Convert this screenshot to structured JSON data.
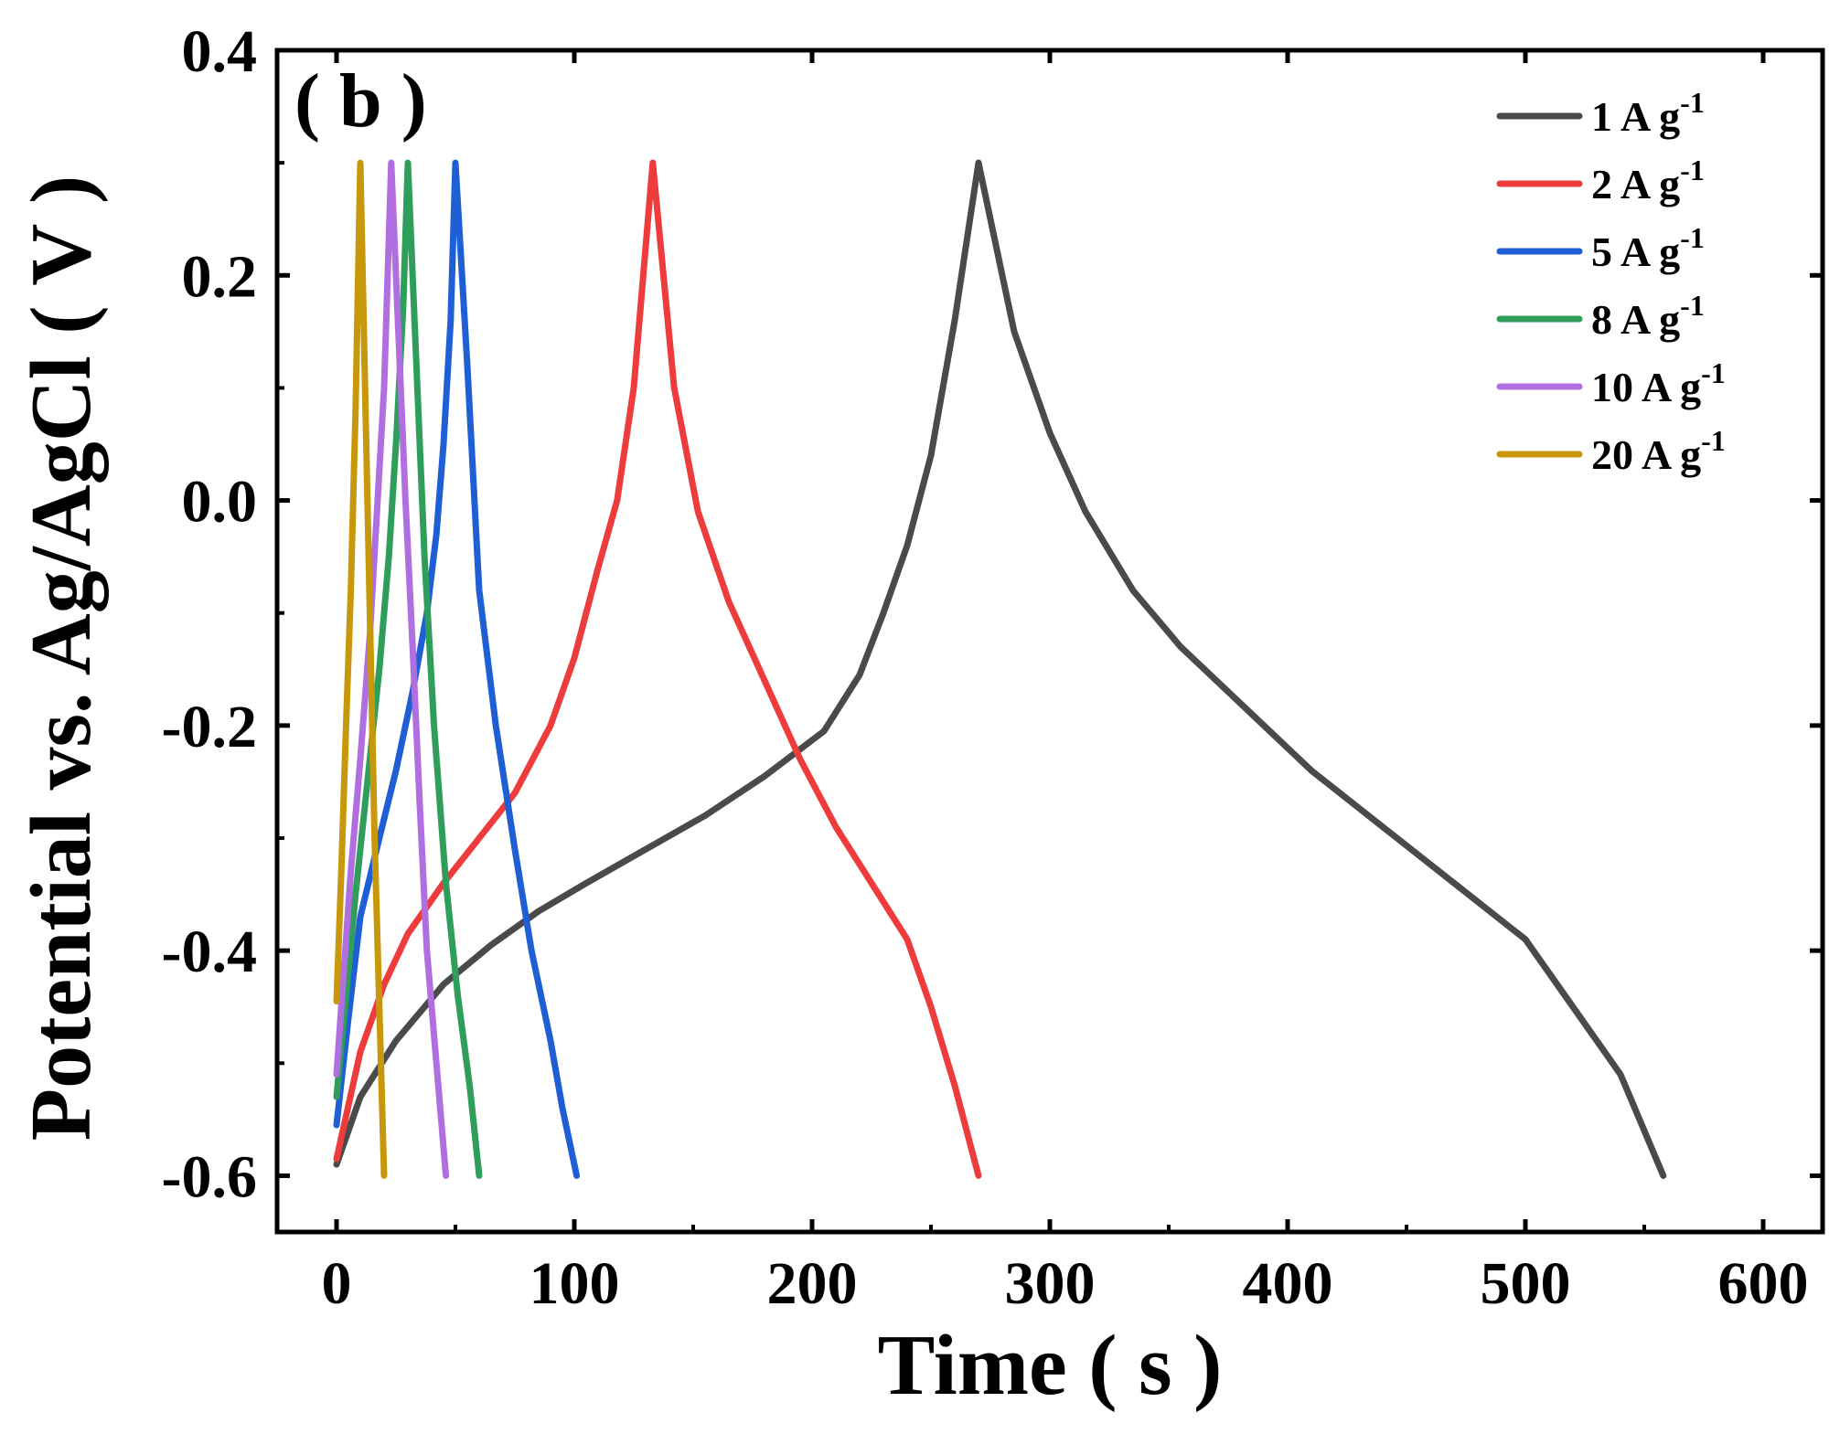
{
  "chart_data": {
    "type": "line",
    "panel_label": "( b )",
    "xlabel": "Time ( s )",
    "ylabel": "Potential vs. Ag/AgCl ( V )",
    "xlim": [
      -25,
      625
    ],
    "ylim": [
      -0.65,
      0.4
    ],
    "xticks": [
      0,
      100,
      200,
      300,
      400,
      500,
      600
    ],
    "xtick_labels": [
      "0",
      "100",
      "200",
      "300",
      "400",
      "500",
      "600"
    ],
    "yticks": [
      -0.6,
      -0.4,
      -0.2,
      0.0,
      0.2,
      0.4
    ],
    "ytick_labels": [
      "-0.6",
      "-0.4",
      "-0.2",
      "0.0",
      "0.2",
      "0.4"
    ],
    "legend_position": "top-right",
    "series": [
      {
        "name": "1 A g-1",
        "label_main": "1 A g",
        "label_sup": "-1",
        "color": "#4a4a4a",
        "points": [
          [
            0,
            -0.59
          ],
          [
            10,
            -0.53
          ],
          [
            25,
            -0.48
          ],
          [
            45,
            -0.43
          ],
          [
            65,
            -0.395
          ],
          [
            85,
            -0.365
          ],
          [
            105,
            -0.34
          ],
          [
            130,
            -0.31
          ],
          [
            155,
            -0.28
          ],
          [
            180,
            -0.245
          ],
          [
            205,
            -0.205
          ],
          [
            220,
            -0.155
          ],
          [
            230,
            -0.1
          ],
          [
            240,
            -0.04
          ],
          [
            250,
            0.04
          ],
          [
            260,
            0.16
          ],
          [
            270,
            0.3
          ],
          [
            285,
            0.15
          ],
          [
            300,
            0.06
          ],
          [
            315,
            -0.01
          ],
          [
            335,
            -0.08
          ],
          [
            355,
            -0.13
          ],
          [
            380,
            -0.18
          ],
          [
            410,
            -0.24
          ],
          [
            440,
            -0.29
          ],
          [
            470,
            -0.34
          ],
          [
            500,
            -0.39
          ],
          [
            520,
            -0.45
          ],
          [
            540,
            -0.51
          ],
          [
            558,
            -0.6
          ]
        ]
      },
      {
        "name": "2 A g-1",
        "label_main": "2 A g",
        "label_sup": "-1",
        "color": "#ee3b3b",
        "points": [
          [
            0,
            -0.585
          ],
          [
            10,
            -0.49
          ],
          [
            20,
            -0.43
          ],
          [
            30,
            -0.385
          ],
          [
            45,
            -0.34
          ],
          [
            60,
            -0.3
          ],
          [
            75,
            -0.26
          ],
          [
            90,
            -0.2
          ],
          [
            100,
            -0.14
          ],
          [
            110,
            -0.06
          ],
          [
            118,
            0.0
          ],
          [
            125,
            0.1
          ],
          [
            133,
            0.3
          ],
          [
            142,
            0.1
          ],
          [
            152,
            -0.01
          ],
          [
            165,
            -0.09
          ],
          [
            180,
            -0.16
          ],
          [
            195,
            -0.23
          ],
          [
            210,
            -0.29
          ],
          [
            225,
            -0.34
          ],
          [
            240,
            -0.39
          ],
          [
            250,
            -0.45
          ],
          [
            260,
            -0.52
          ],
          [
            270,
            -0.6
          ]
        ]
      },
      {
        "name": "5 A g-1",
        "label_main": "5 A g",
        "label_sup": "-1",
        "color": "#1f5fd6",
        "points": [
          [
            0,
            -0.555
          ],
          [
            5,
            -0.46
          ],
          [
            10,
            -0.37
          ],
          [
            18,
            -0.3
          ],
          [
            25,
            -0.24
          ],
          [
            32,
            -0.17
          ],
          [
            38,
            -0.1
          ],
          [
            42,
            -0.03
          ],
          [
            45,
            0.05
          ],
          [
            48,
            0.16
          ],
          [
            50,
            0.3
          ],
          [
            55,
            0.12
          ],
          [
            60,
            -0.08
          ],
          [
            67,
            -0.2
          ],
          [
            75,
            -0.31
          ],
          [
            82,
            -0.4
          ],
          [
            90,
            -0.48
          ],
          [
            95,
            -0.54
          ],
          [
            101,
            -0.6
          ]
        ]
      },
      {
        "name": "8 A g-1",
        "label_main": "8 A g",
        "label_sup": "-1",
        "color": "#2e9e5a",
        "points": [
          [
            0,
            -0.53
          ],
          [
            4,
            -0.44
          ],
          [
            8,
            -0.35
          ],
          [
            13,
            -0.25
          ],
          [
            18,
            -0.15
          ],
          [
            22,
            -0.05
          ],
          [
            25,
            0.05
          ],
          [
            28,
            0.17
          ],
          [
            30,
            0.3
          ],
          [
            33,
            0.15
          ],
          [
            37,
            -0.05
          ],
          [
            41,
            -0.2
          ],
          [
            46,
            -0.34
          ],
          [
            51,
            -0.44
          ],
          [
            56,
            -0.52
          ],
          [
            60,
            -0.6
          ]
        ]
      },
      {
        "name": "10 A g-1",
        "label_main": "10 A g",
        "label_sup": "-1",
        "color": "#b06ee0",
        "points": [
          [
            0,
            -0.51
          ],
          [
            3,
            -0.42
          ],
          [
            6,
            -0.33
          ],
          [
            10,
            -0.23
          ],
          [
            14,
            -0.12
          ],
          [
            17,
            -0.01
          ],
          [
            20,
            0.1
          ],
          [
            23,
            0.3
          ],
          [
            26,
            0.15
          ],
          [
            29,
            0.0
          ],
          [
            32,
            -0.13
          ],
          [
            35,
            -0.27
          ],
          [
            38,
            -0.4
          ],
          [
            42,
            -0.5
          ],
          [
            46,
            -0.6
          ]
        ]
      },
      {
        "name": "20 A g-1",
        "label_main": "20 A g",
        "label_sup": "-1",
        "color": "#c8980c",
        "points": [
          [
            0,
            -0.445
          ],
          [
            2,
            -0.33
          ],
          [
            4,
            -0.2
          ],
          [
            6,
            -0.08
          ],
          [
            8,
            0.08
          ],
          [
            10,
            0.3
          ],
          [
            12,
            0.1
          ],
          [
            14,
            -0.1
          ],
          [
            16,
            -0.3
          ],
          [
            18,
            -0.45
          ],
          [
            20,
            -0.6
          ]
        ]
      }
    ]
  }
}
